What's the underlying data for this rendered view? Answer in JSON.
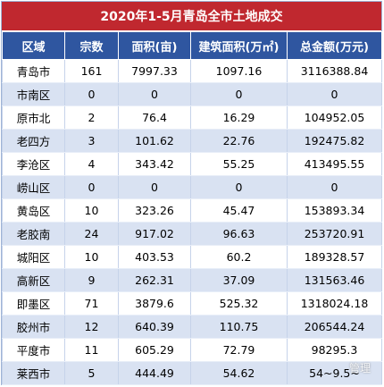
{
  "title": "2020年1-5月青岛全市土地成交",
  "headers": [
    "区域",
    "宗数",
    "面积(亩)",
    "建筑面积(万㎡)",
    "总金额(万元)"
  ],
  "rows": [
    [
      "青岛市",
      "161",
      "7997.33",
      "1097.16",
      "3116388.84"
    ],
    [
      "市南区",
      "0",
      "0",
      "0",
      "0"
    ],
    [
      "原市北",
      "2",
      "76.4",
      "16.29",
      "104952.05"
    ],
    [
      "老四方",
      "3",
      "101.62",
      "22.76",
      "192475.82"
    ],
    [
      "李沧区",
      "4",
      "343.42",
      "55.25",
      "413495.55"
    ],
    [
      "崂山区",
      "0",
      "0",
      "0",
      "0"
    ],
    [
      "黄岛区",
      "10",
      "323.26",
      "45.47",
      "153893.34"
    ],
    [
      "老胶南",
      "24",
      "917.02",
      "96.63",
      "253720.91"
    ],
    [
      "城阳区",
      "10",
      "403.53",
      "60.2",
      "189328.57"
    ],
    [
      "高新区",
      "9",
      "262.31",
      "37.09",
      "131563.46"
    ],
    [
      "即墨区",
      "71",
      "3879.6",
      "525.32",
      "1318024.18"
    ],
    [
      "胶州市",
      "12",
      "640.39",
      "110.75",
      "206544.24"
    ],
    [
      "平度市",
      "11",
      "605.29",
      "72.79",
      "98295.3"
    ],
    [
      "莱西市",
      "5",
      "444.49",
      "54.62",
      "54~9.5~"
    ]
  ],
  "watermark": "管理",
  "colors": {
    "title_bg": "#c0282f",
    "header_bg": "#2f56a0",
    "stripe_bg": "#d9e2f2"
  }
}
